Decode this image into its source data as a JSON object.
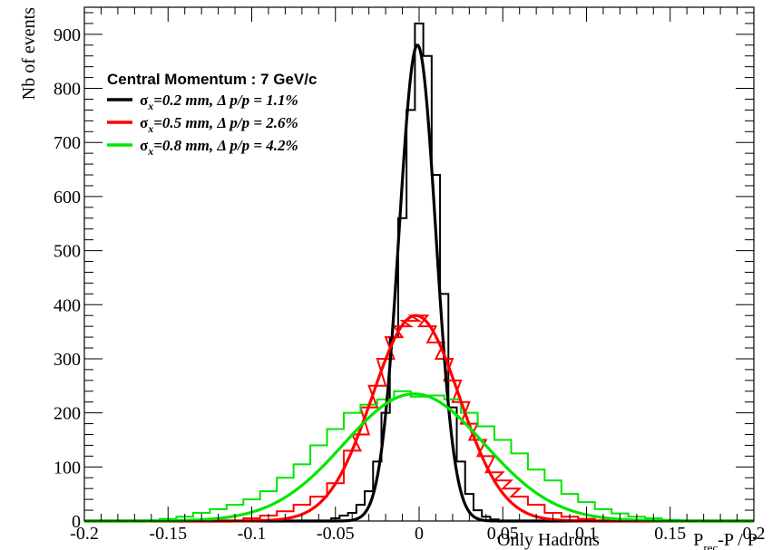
{
  "chart_data": {
    "type": "line",
    "title": "",
    "xlabel": {
      "note": "Only Hadrons",
      "main": "P",
      "sub": "rec",
      "rest": "-P / P"
    },
    "ylabel": "Nb of events",
    "xlim": [
      -0.2,
      0.2
    ],
    "ylim": [
      0,
      950
    ],
    "xticks": [
      "-0.2",
      "-0.15",
      "-0.1",
      "-0.05",
      "0",
      "0.05",
      "0.1",
      "0.15",
      "0.2"
    ],
    "yticks": [
      "0",
      "100",
      "200",
      "300",
      "400",
      "500",
      "600",
      "700",
      "800",
      "900"
    ],
    "grid": false,
    "legend": {
      "placement": "top-left",
      "header": "Central Momentum :  7 GeV/c",
      "entries": [
        {
          "sigma": "σ",
          "sub": "x",
          "text": "=0.2 mm, Δ p/p = 1.1%"
        },
        {
          "sigma": "σ",
          "sub": "x",
          "text": "=0.5 mm, Δ p/p = 2.6%"
        },
        {
          "sigma": "σ",
          "sub": "x",
          "text": "=0.8 mm, Δ p/p = 4.2%"
        }
      ]
    },
    "series": [
      {
        "color": "#000000",
        "fit": {
          "amplitude": 880,
          "mean": -0.001,
          "sigma": 0.011
        },
        "histogram": {
          "x": [
            -0.06,
            -0.055,
            -0.05,
            -0.045,
            -0.04,
            -0.035,
            -0.03,
            -0.025,
            -0.02,
            -0.015,
            -0.01,
            -0.005,
            0.0,
            0.005,
            0.01,
            0.015,
            0.02,
            0.025,
            0.03,
            0.035,
            0.04,
            0.045,
            0.05
          ],
          "y": [
            0,
            0,
            5,
            10,
            15,
            30,
            55,
            110,
            200,
            340,
            560,
            760,
            920,
            860,
            640,
            420,
            210,
            110,
            50,
            20,
            8,
            3,
            0
          ]
        }
      },
      {
        "color": "#ff0000",
        "fit": {
          "amplitude": 380,
          "mean": -0.002,
          "sigma": 0.026
        },
        "histogram": {
          "x": [
            -0.1,
            -0.09,
            -0.08,
            -0.07,
            -0.06,
            -0.05,
            -0.04,
            -0.035,
            -0.03,
            -0.025,
            -0.02,
            -0.015,
            -0.01,
            -0.005,
            0.0,
            0.005,
            0.01,
            0.015,
            0.02,
            0.025,
            0.03,
            0.035,
            0.04,
            0.045,
            0.05,
            0.055,
            0.06,
            0.07,
            0.08,
            0.09,
            0.1
          ],
          "y": [
            5,
            10,
            18,
            30,
            45,
            70,
            130,
            160,
            210,
            250,
            300,
            340,
            360,
            370,
            380,
            360,
            330,
            300,
            260,
            220,
            180,
            150,
            120,
            90,
            75,
            60,
            45,
            30,
            15,
            8,
            4
          ]
        }
      },
      {
        "color": "#00e600",
        "fit": {
          "amplitude": 235,
          "mean": -0.003,
          "sigma": 0.042
        },
        "histogram": {
          "x": [
            -0.15,
            -0.14,
            -0.13,
            -0.12,
            -0.11,
            -0.1,
            -0.09,
            -0.08,
            -0.07,
            -0.06,
            -0.05,
            -0.04,
            -0.03,
            -0.02,
            -0.01,
            0.0,
            0.01,
            0.02,
            0.03,
            0.04,
            0.05,
            0.06,
            0.07,
            0.08,
            0.09,
            0.1,
            0.11,
            0.12,
            0.13,
            0.14,
            0.15
          ],
          "y": [
            4,
            8,
            15,
            22,
            30,
            40,
            55,
            80,
            105,
            140,
            170,
            200,
            215,
            225,
            240,
            230,
            232,
            225,
            200,
            175,
            150,
            125,
            95,
            75,
            50,
            35,
            22,
            14,
            8,
            5,
            2
          ]
        }
      }
    ]
  }
}
